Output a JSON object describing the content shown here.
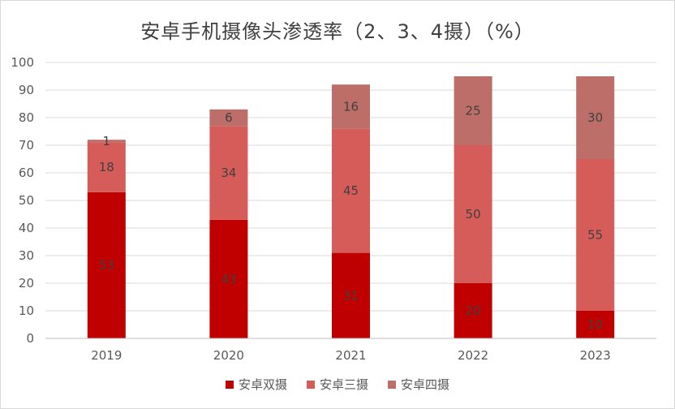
{
  "chart_data": {
    "type": "bar",
    "stacked": true,
    "title": "安卓手机摄像头渗透率（2、3、4摄）（%）",
    "categories": [
      "2019",
      "2020",
      "2021",
      "2022",
      "2023"
    ],
    "series": [
      {
        "name": "安卓双摄",
        "color": "#c00000",
        "values": [
          53,
          43,
          31,
          20,
          10
        ]
      },
      {
        "name": "安卓三摄",
        "color": "#d65c5a",
        "values": [
          18,
          34,
          45,
          50,
          55
        ]
      },
      {
        "name": "安卓四摄",
        "color": "#bd6e69",
        "values": [
          1,
          6,
          16,
          25,
          30
        ]
      }
    ],
    "ylim": [
      0,
      100
    ],
    "yticks": [
      0,
      10,
      20,
      30,
      40,
      50,
      60,
      70,
      80,
      90,
      100
    ],
    "grid": true,
    "legend_position": "bottom",
    "data_labels": true
  }
}
